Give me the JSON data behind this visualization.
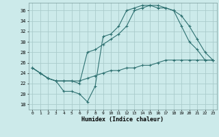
{
  "xlabel": "Humidex (Indice chaleur)",
  "bg_color": "#cceaea",
  "grid_color": "#aacccc",
  "line_color": "#2d7070",
  "xlim": [
    -0.5,
    23.5
  ],
  "ylim": [
    17,
    37.5
  ],
  "yticks": [
    18,
    20,
    22,
    24,
    26,
    28,
    30,
    32,
    34,
    36
  ],
  "xticks": [
    0,
    1,
    2,
    3,
    4,
    5,
    6,
    7,
    8,
    9,
    10,
    11,
    12,
    13,
    14,
    15,
    16,
    17,
    18,
    19,
    20,
    21,
    22,
    23
  ],
  "line1_x": [
    0,
    1,
    2,
    3,
    4,
    5,
    6,
    7,
    8,
    9,
    10,
    11,
    12,
    13,
    14,
    15,
    16,
    17,
    18,
    19,
    20,
    21,
    22,
    23
  ],
  "line1_y": [
    25.0,
    24.0,
    23.0,
    22.5,
    20.5,
    20.5,
    20.0,
    18.5,
    21.5,
    31.0,
    31.5,
    33.0,
    36.0,
    36.5,
    37.0,
    37.0,
    36.5,
    36.5,
    36.0,
    35.0,
    33.0,
    30.5,
    28.0,
    26.5
  ],
  "line2_x": [
    0,
    1,
    2,
    3,
    4,
    5,
    6,
    7,
    8,
    9,
    10,
    11,
    12,
    13,
    14,
    15,
    16,
    17,
    18,
    19,
    20,
    21,
    22,
    23
  ],
  "line2_y": [
    25.0,
    24.0,
    23.0,
    22.5,
    22.5,
    22.5,
    22.0,
    28.0,
    28.5,
    29.5,
    30.5,
    31.5,
    33.0,
    36.0,
    36.5,
    37.0,
    37.0,
    36.5,
    36.0,
    33.0,
    30.0,
    28.5,
    26.5,
    26.5
  ],
  "line3_x": [
    0,
    1,
    2,
    3,
    4,
    5,
    6,
    7,
    8,
    9,
    10,
    11,
    12,
    13,
    14,
    15,
    16,
    17,
    18,
    19,
    20,
    21,
    22,
    23
  ],
  "line3_y": [
    25.0,
    24.0,
    23.0,
    22.5,
    22.5,
    22.5,
    22.5,
    23.0,
    23.5,
    24.0,
    24.5,
    24.5,
    25.0,
    25.0,
    25.5,
    25.5,
    26.0,
    26.5,
    26.5,
    26.5,
    26.5,
    26.5,
    26.5,
    26.5
  ]
}
